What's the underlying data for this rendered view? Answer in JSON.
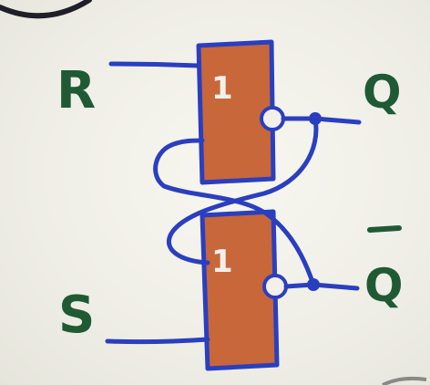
{
  "diagram": {
    "top_gate": {
      "symbol": "1",
      "output_label": "Q"
    },
    "bottom_gate": {
      "symbol": "1",
      "output_label": "Q"
    },
    "inputs": {
      "reset": "R",
      "set": "S"
    },
    "colors": {
      "wire": "#2a3fc0",
      "gate_fill": "#c8673a",
      "label": "#1f5a35",
      "gate_text": "#f3f0ea"
    }
  }
}
